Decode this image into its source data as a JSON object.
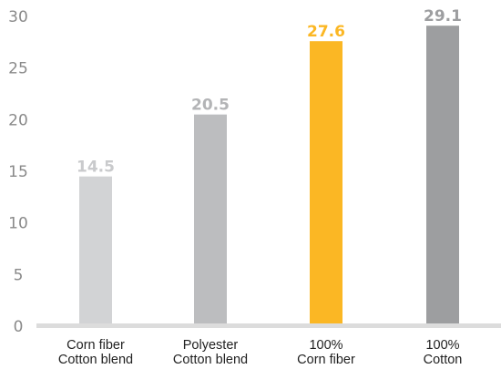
{
  "chart_data": {
    "type": "bar",
    "categories": [
      [
        "Corn fiber",
        "Cotton blend"
      ],
      [
        "Polyester",
        "Cotton blend"
      ],
      [
        "100%",
        "Corn fiber"
      ],
      [
        "100%",
        "Cotton"
      ]
    ],
    "values": [
      14.5,
      20.5,
      27.6,
      29.1
    ],
    "value_labels": [
      "14.5",
      "20.5",
      "27.6",
      "29.1"
    ],
    "bar_colors": [
      "#d2d3d5",
      "#bcbdbf",
      "#fbb724",
      "#9d9ea0"
    ],
    "value_label_colors": [
      "#c9cacc",
      "#b3b4b6",
      "#fbb724",
      "#9d9ea0"
    ],
    "yticks": [
      0,
      5,
      10,
      15,
      20,
      25,
      30
    ],
    "ylim": [
      0,
      30
    ],
    "title": "",
    "xlabel": "",
    "ylabel": "",
    "grid": false,
    "legend": "none"
  },
  "colors": {
    "axis": "#dcdcdc",
    "tick_text": "#8a8a8a",
    "category_text": "#222222"
  }
}
